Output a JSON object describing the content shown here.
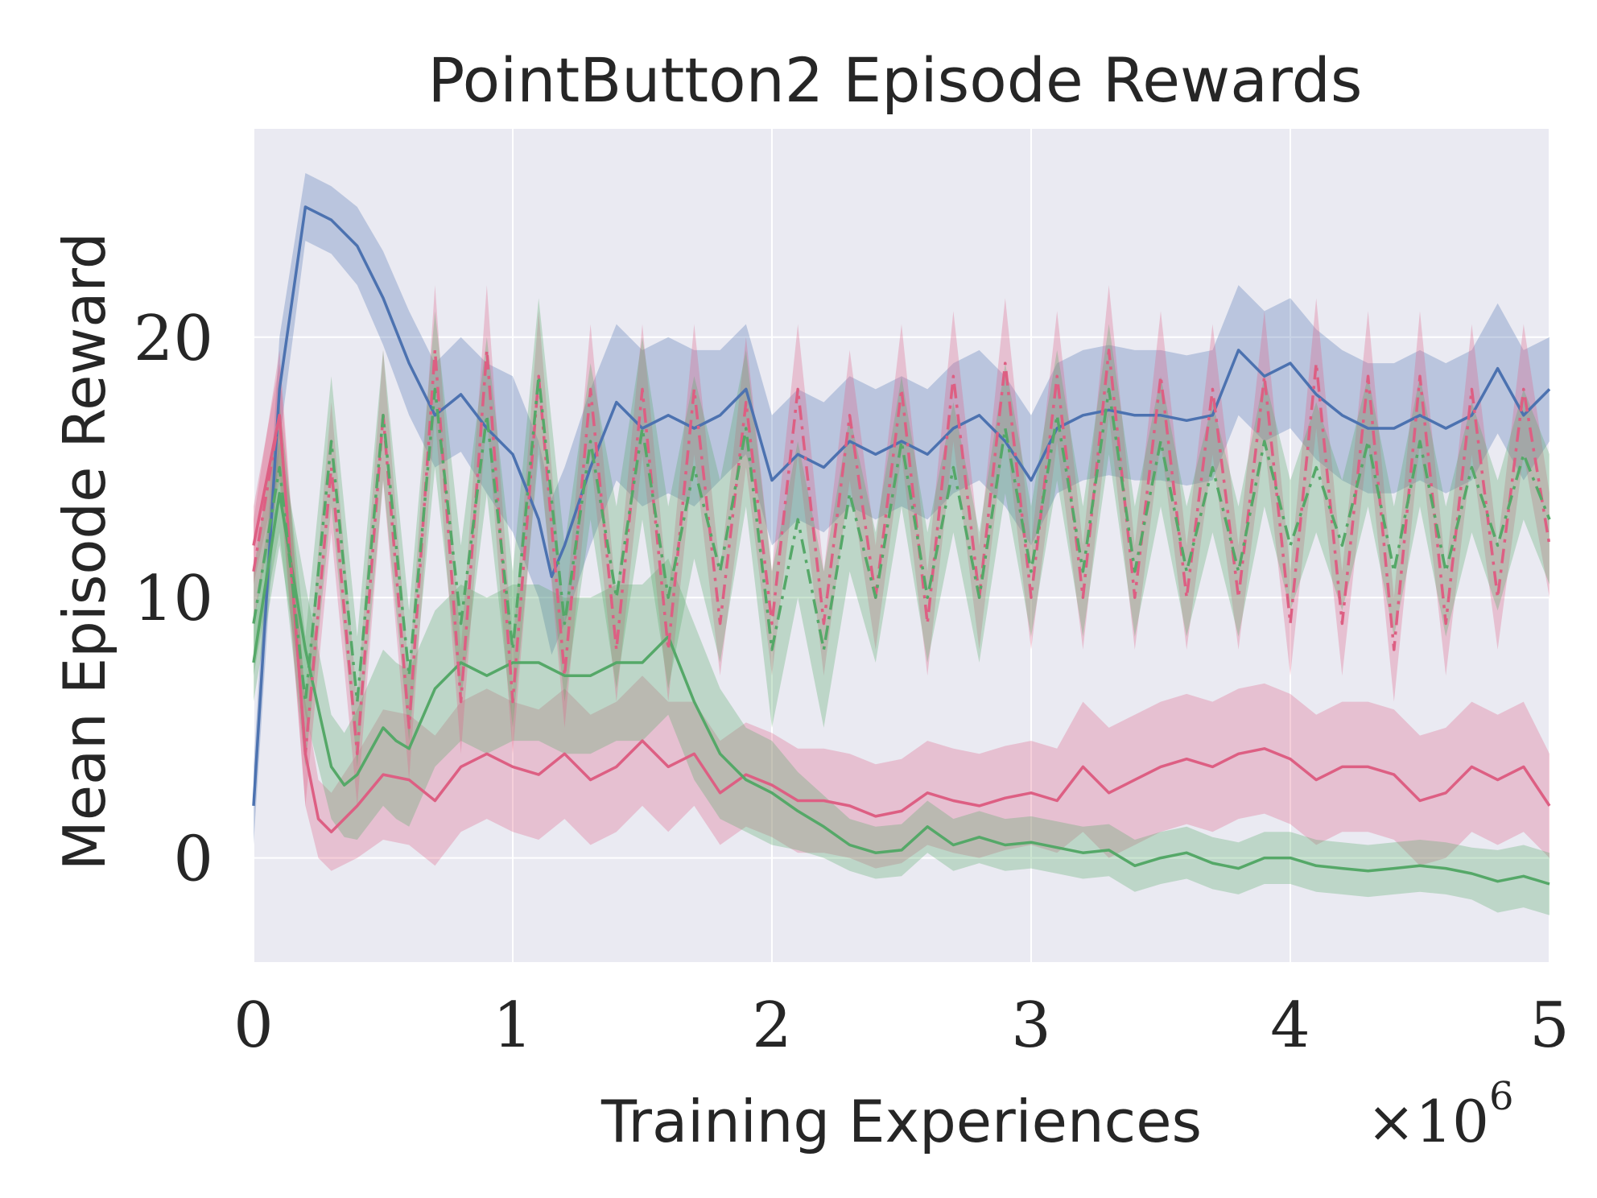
{
  "chart_data": {
    "type": "line",
    "title": "PointButton2 Episode Rewards",
    "xlabel": "Training Experiences",
    "ylabel": "Mean Episode Reward",
    "x_multiplier": "×10",
    "x_multiplier_exponent": "6",
    "xlim": [
      0,
      5000000
    ],
    "ylim": [
      -4,
      28
    ],
    "xticks": [
      0,
      1000000,
      2000000,
      3000000,
      4000000,
      5000000
    ],
    "xtick_labels": [
      "0",
      "1",
      "2",
      "3",
      "4",
      "5"
    ],
    "yticks": [
      0,
      10,
      20
    ],
    "ytick_labels": [
      "0",
      "10",
      "20"
    ],
    "grid": true,
    "colors": {
      "blue": "#4c72b0",
      "pink": "#dd5f83",
      "green": "#55a868",
      "background": "#eaeaf2",
      "grid": "#ffffff"
    },
    "series": [
      {
        "color": "#4c72b0",
        "style": "solid",
        "x": [
          0,
          100000,
          200000,
          300000,
          400000,
          500000,
          600000,
          700000,
          800000,
          900000,
          1000000,
          1100000,
          1150000,
          1200000,
          1300000,
          1400000,
          1500000,
          1600000,
          1700000,
          1800000,
          1900000,
          2000000,
          2100000,
          2200000,
          2300000,
          2400000,
          2500000,
          2600000,
          2700000,
          2800000,
          2900000,
          3000000,
          3100000,
          3200000,
          3300000,
          3400000,
          3500000,
          3600000,
          3700000,
          3800000,
          3900000,
          4000000,
          4100000,
          4200000,
          4300000,
          4400000,
          4500000,
          4600000,
          4700000,
          4800000,
          4900000,
          5000000
        ],
        "y": [
          2,
          18,
          25,
          24.5,
          23.5,
          21.5,
          19,
          17,
          17.8,
          16.5,
          15.5,
          13,
          10.8,
          12,
          15,
          17.5,
          16.5,
          17,
          16.5,
          17,
          18,
          14.5,
          15.5,
          15,
          16,
          15.5,
          16,
          15.5,
          16.5,
          17,
          16,
          14.5,
          16.5,
          17,
          17.2,
          17,
          17,
          16.8,
          17,
          19.5,
          18.5,
          19,
          17.8,
          17,
          16.5,
          16.5,
          17,
          16.5,
          17,
          18.8,
          17,
          18
        ],
        "band": [
          1.5,
          2,
          1.3,
          1.3,
          1.5,
          1.8,
          2,
          2,
          2.2,
          2.5,
          3,
          3,
          3,
          3,
          3,
          3,
          3,
          3,
          3,
          2.5,
          2.5,
          2.5,
          2.5,
          2.5,
          2.5,
          2.5,
          2.5,
          2.5,
          2.5,
          2.5,
          2.5,
          2.5,
          2.5,
          2.5,
          2.5,
          2.5,
          2.5,
          2.5,
          2.5,
          2.5,
          2.5,
          2.5,
          2.5,
          2.5,
          2.5,
          2.5,
          2.5,
          2.5,
          2.5,
          2.5,
          2.5,
          2
        ]
      },
      {
        "color": "#dd5f83",
        "style": "solid",
        "x": [
          0,
          100000,
          200000,
          250000,
          300000,
          400000,
          500000,
          600000,
          700000,
          800000,
          900000,
          1000000,
          1100000,
          1200000,
          1300000,
          1400000,
          1500000,
          1600000,
          1700000,
          1800000,
          1900000,
          2000000,
          2100000,
          2200000,
          2300000,
          2400000,
          2500000,
          2600000,
          2700000,
          2800000,
          2900000,
          3000000,
          3100000,
          3200000,
          3300000,
          3400000,
          3500000,
          3600000,
          3700000,
          3800000,
          3900000,
          4000000,
          4100000,
          4200000,
          4300000,
          4400000,
          4500000,
          4600000,
          4700000,
          4800000,
          4900000,
          5000000
        ],
        "y": [
          12,
          17,
          4,
          1.5,
          1,
          2,
          3.2,
          3,
          2.2,
          3.5,
          4,
          3.5,
          3.2,
          4,
          3,
          3.5,
          4.5,
          3.5,
          4,
          2.5,
          3.2,
          2.8,
          2.2,
          2.2,
          2,
          1.6,
          1.8,
          2.5,
          2.2,
          2,
          2.3,
          2.5,
          2.2,
          3.5,
          2.5,
          3,
          3.5,
          3.8,
          3.5,
          4,
          4.2,
          3.8,
          3,
          3.5,
          3.5,
          3.2,
          2.2,
          2.5,
          3.5,
          3,
          3.5,
          2
        ],
        "band": [
          1.5,
          2,
          2,
          1.5,
          1.5,
          2,
          2.5,
          2.5,
          2.5,
          2.5,
          2.5,
          2.5,
          2.5,
          2.5,
          2.5,
          2.5,
          2.5,
          2.5,
          2,
          2,
          2,
          2,
          2,
          2,
          2,
          2,
          2,
          2,
          2,
          2,
          2,
          2,
          2,
          2.5,
          2.5,
          2.5,
          2.5,
          2.5,
          2.5,
          2.5,
          2.5,
          2.5,
          2.5,
          2.5,
          2.5,
          2.5,
          2.5,
          2.5,
          2.5,
          2.5,
          2.5,
          2
        ]
      },
      {
        "color": "#55a868",
        "style": "solid",
        "x": [
          0,
          100000,
          200000,
          300000,
          350000,
          400000,
          500000,
          550000,
          600000,
          700000,
          800000,
          900000,
          1000000,
          1100000,
          1200000,
          1300000,
          1400000,
          1500000,
          1600000,
          1700000,
          1800000,
          1900000,
          2000000,
          2100000,
          2200000,
          2300000,
          2400000,
          2500000,
          2600000,
          2700000,
          2800000,
          2900000,
          3000000,
          3100000,
          3200000,
          3300000,
          3400000,
          3500000,
          3600000,
          3700000,
          3800000,
          3900000,
          4000000,
          4100000,
          4200000,
          4300000,
          4400000,
          4500000,
          4600000,
          4700000,
          4800000,
          4900000,
          5000000
        ],
        "y": [
          7.5,
          14,
          8,
          3.5,
          2.8,
          3.2,
          5,
          4.5,
          4.2,
          6.5,
          7.5,
          7,
          7.5,
          7.5,
          7,
          7,
          7.5,
          7.5,
          8.5,
          6,
          4,
          3,
          2.5,
          1.8,
          1.2,
          0.5,
          0.2,
          0.3,
          1.2,
          0.5,
          0.8,
          0.5,
          0.6,
          0.4,
          0.2,
          0.3,
          -0.3,
          0,
          0.2,
          -0.2,
          -0.4,
          0,
          0,
          -0.3,
          -0.4,
          -0.5,
          -0.4,
          -0.3,
          -0.4,
          -0.6,
          -0.9,
          -0.7,
          -1
        ],
        "band": [
          1.5,
          2,
          2.5,
          2,
          2,
          2.5,
          3,
          3,
          3,
          3,
          3,
          3,
          3,
          3,
          3,
          3,
          3,
          3,
          3,
          3,
          2.5,
          2,
          2,
          1.5,
          1.2,
          1,
          1,
          1,
          1,
          1,
          1,
          1,
          1,
          1,
          1,
          1,
          1,
          1,
          1,
          1,
          1,
          1,
          1,
          1,
          1,
          1,
          1,
          1,
          1,
          1,
          1.2,
          1.2,
          1.2
        ]
      },
      {
        "color": "#dd5f83",
        "style": "dashdot",
        "x": [
          0,
          100000,
          200000,
          300000,
          400000,
          500000,
          600000,
          700000,
          800000,
          900000,
          1000000,
          1100000,
          1200000,
          1300000,
          1400000,
          1500000,
          1600000,
          1700000,
          1800000,
          1900000,
          2000000,
          2100000,
          2200000,
          2300000,
          2400000,
          2500000,
          2600000,
          2700000,
          2800000,
          2900000,
          3000000,
          3100000,
          3200000,
          3300000,
          3400000,
          3500000,
          3600000,
          3700000,
          3800000,
          3900000,
          4000000,
          4100000,
          4200000,
          4300000,
          4400000,
          4500000,
          4600000,
          4700000,
          4800000,
          4900000,
          5000000
        ],
        "y": [
          11,
          17,
          4,
          15,
          4,
          17,
          5,
          19.5,
          6,
          19.5,
          6,
          18.5,
          7,
          18,
          8,
          18,
          8,
          18,
          9,
          17.5,
          9,
          18,
          9,
          17,
          10,
          18,
          9,
          18.5,
          10,
          19,
          10,
          18.5,
          10,
          19.5,
          10,
          18.5,
          10,
          18,
          10,
          18.5,
          9,
          19,
          9,
          18.5,
          8,
          18.5,
          9,
          18,
          10,
          18,
          12
        ],
        "band": [
          2,
          2.5,
          2,
          2.5,
          2,
          2.5,
          2,
          2.5,
          2,
          2.5,
          2,
          2.5,
          2,
          2.5,
          2,
          2.5,
          2,
          2.5,
          2,
          2.5,
          2,
          2.5,
          2,
          2.5,
          2,
          2.5,
          2,
          2.5,
          2,
          2.5,
          2,
          2.5,
          2,
          2.5,
          2,
          2.5,
          2,
          2.5,
          2,
          2.5,
          2,
          2.5,
          2,
          2.5,
          2,
          2.5,
          2,
          2.5,
          2,
          2.5,
          2
        ]
      },
      {
        "color": "#55a868",
        "style": "dashdot",
        "x": [
          0,
          100000,
          200000,
          300000,
          400000,
          500000,
          600000,
          700000,
          800000,
          900000,
          1000000,
          1100000,
          1200000,
          1300000,
          1400000,
          1500000,
          1600000,
          1700000,
          1800000,
          1900000,
          2000000,
          2100000,
          2200000,
          2300000,
          2400000,
          2500000,
          2600000,
          2700000,
          2800000,
          2900000,
          3000000,
          3100000,
          3200000,
          3300000,
          3400000,
          3500000,
          3600000,
          3700000,
          3800000,
          3900000,
          4000000,
          4100000,
          4200000,
          4300000,
          4400000,
          4500000,
          4600000,
          4700000,
          4800000,
          4900000,
          5000000
        ],
        "y": [
          9,
          15,
          6,
          16,
          6,
          17,
          7,
          18,
          9,
          17,
          8,
          18.5,
          9,
          16,
          10,
          16.5,
          10,
          15,
          11,
          16.5,
          8,
          13,
          8,
          14,
          10,
          16,
          10,
          15,
          10,
          16.5,
          11,
          17,
          11,
          18,
          11,
          16,
          11,
          15,
          11,
          16,
          12,
          15,
          12,
          16,
          11,
          16,
          11,
          15,
          12,
          15.5,
          13
        ],
        "band": [
          2,
          2.5,
          2.5,
          2.5,
          2.5,
          2.5,
          2.5,
          3,
          3,
          3,
          3,
          3,
          3,
          3,
          3.5,
          3.5,
          3.5,
          3.5,
          3.5,
          3,
          3,
          3,
          3,
          3,
          2.5,
          2.5,
          2.5,
          2.5,
          2.5,
          2.5,
          2.5,
          2.5,
          2.5,
          2.5,
          2.5,
          2.5,
          2.5,
          2.5,
          2.5,
          2.5,
          2.5,
          2.5,
          2.5,
          2.5,
          2.5,
          2.5,
          2.5,
          2.5,
          2.5,
          2.5,
          2.5
        ]
      }
    ]
  }
}
